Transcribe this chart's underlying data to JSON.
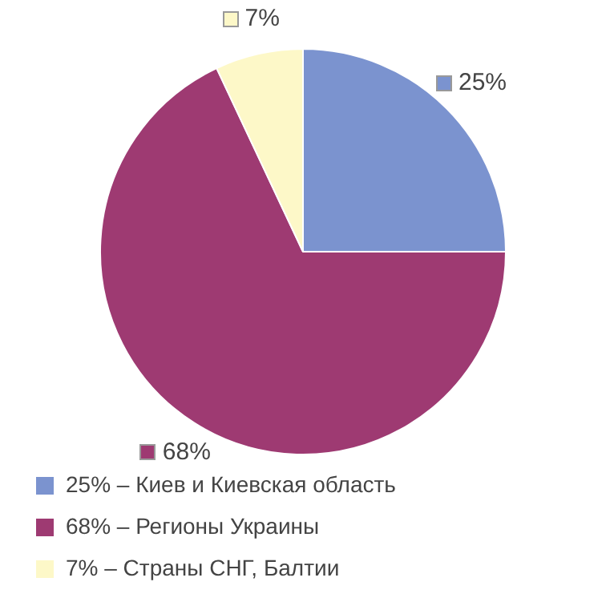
{
  "chart_data": {
    "type": "pie",
    "categories": [
      "25% – Киев и Киевская область",
      "68% – Регионы Украины",
      "7% – Страны СНГ, Балтии"
    ],
    "values": [
      25,
      68,
      7
    ],
    "colors": [
      "#7b93cf",
      "#9e3a72",
      "#fdf8c8"
    ],
    "value_labels": [
      "25%",
      "68%",
      "7%"
    ],
    "legend": "bottom"
  }
}
